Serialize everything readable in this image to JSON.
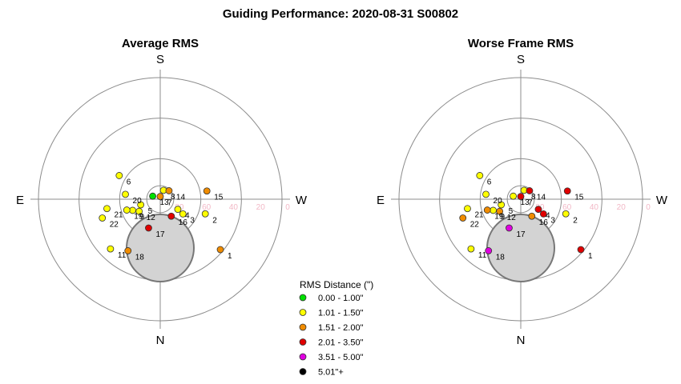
{
  "title": "Guiding Performance: 2020-08-31 S00802",
  "alt_labels": [
    "80",
    "60",
    "40",
    "20",
    "0"
  ],
  "directions": {
    "top": "S",
    "bottom": "N",
    "left": "E",
    "right": "W"
  },
  "legend": {
    "title": "RMS Distance (\")",
    "items": [
      {
        "label": "0.00 - 1.00\"",
        "color": "#00e000"
      },
      {
        "label": "1.01 - 1.50\"",
        "color": "#ffff00"
      },
      {
        "label": "1.51 - 2.00\"",
        "color": "#f08c00"
      },
      {
        "label": "2.01 - 3.50\"",
        "color": "#e00000"
      },
      {
        "label": "3.51 - 5.00\"",
        "color": "#e000e0"
      },
      {
        "label": "5.01\"+",
        "color": "#000000"
      }
    ]
  },
  "chart_data": [
    {
      "type": "scatter",
      "projection": "polar (azimuth / altitude)",
      "title": "Average RMS",
      "r_ticks": [
        80,
        60,
        40,
        20,
        0
      ],
      "points": [
        {
          "label": "1",
          "alt": 32,
          "az": 230,
          "class": 2
        },
        {
          "label": "2",
          "alt": 55,
          "az": 252,
          "class": 1
        },
        {
          "label": "3",
          "alt": 70,
          "az": 237,
          "class": 1
        },
        {
          "label": "4",
          "alt": 75,
          "az": 240,
          "class": 1
        },
        {
          "label": "5",
          "alt": 75,
          "az": 106,
          "class": 1
        },
        {
          "label": "6",
          "alt": 55,
          "az": 60,
          "class": 1
        },
        {
          "label": "7",
          "alt": 88,
          "az": 0,
          "class": 2
        },
        {
          "label": "8",
          "alt": 83,
          "az": 340,
          "class": 1
        },
        {
          "label": "9",
          "alt": 68,
          "az": 112,
          "class": 1
        },
        {
          "label": "12",
          "alt": 72,
          "az": 120,
          "class": 1
        },
        {
          "label": "11",
          "alt": 38,
          "az": 135,
          "class": 1
        },
        {
          "label": "13",
          "alt": 84,
          "az": 68,
          "class": 0
        },
        {
          "label": "14",
          "alt": 81,
          "az": 314,
          "class": 2
        },
        {
          "label": "15",
          "alt": 55,
          "az": 280,
          "class": 2
        },
        {
          "label": "16",
          "alt": 75,
          "az": 213,
          "class": 3
        },
        {
          "label": "17",
          "alt": 67,
          "az": 158,
          "class": 3
        },
        {
          "label": "18",
          "alt": 45,
          "az": 148,
          "class": 2
        },
        {
          "label": "19",
          "alt": 64,
          "az": 108,
          "class": 1
        },
        {
          "label": "20",
          "alt": 64,
          "az": 82,
          "class": 1
        },
        {
          "label": "21",
          "alt": 50,
          "az": 100,
          "class": 1
        },
        {
          "label": "22",
          "alt": 45,
          "az": 108,
          "class": 1
        }
      ]
    },
    {
      "type": "scatter",
      "projection": "polar (azimuth / altitude)",
      "title": "Worse Frame RMS",
      "r_ticks": [
        80,
        60,
        40,
        20,
        0
      ],
      "points": [
        {
          "label": "1",
          "alt": 32,
          "az": 230,
          "class": 3
        },
        {
          "label": "2",
          "alt": 55,
          "az": 252,
          "class": 1
        },
        {
          "label": "3",
          "alt": 70,
          "az": 237,
          "class": 3
        },
        {
          "label": "4",
          "alt": 75,
          "az": 240,
          "class": 3
        },
        {
          "label": "5",
          "alt": 75,
          "az": 106,
          "class": 1
        },
        {
          "label": "6",
          "alt": 55,
          "az": 60,
          "class": 1
        },
        {
          "label": "7",
          "alt": 88,
          "az": 0,
          "class": 3
        },
        {
          "label": "8",
          "alt": 83,
          "az": 340,
          "class": 1
        },
        {
          "label": "9",
          "alt": 68,
          "az": 112,
          "class": 1
        },
        {
          "label": "12",
          "alt": 72,
          "az": 120,
          "class": 2
        },
        {
          "label": "11",
          "alt": 38,
          "az": 135,
          "class": 1
        },
        {
          "label": "13",
          "alt": 84,
          "az": 68,
          "class": 1
        },
        {
          "label": "14",
          "alt": 81,
          "az": 314,
          "class": 3
        },
        {
          "label": "15",
          "alt": 55,
          "az": 280,
          "class": 3
        },
        {
          "label": "16",
          "alt": 75,
          "az": 213,
          "class": 2
        },
        {
          "label": "17",
          "alt": 67,
          "az": 158,
          "class": 4
        },
        {
          "label": "18",
          "alt": 45,
          "az": 148,
          "class": 4
        },
        {
          "label": "19",
          "alt": 64,
          "az": 108,
          "class": 2
        },
        {
          "label": "20",
          "alt": 64,
          "az": 82,
          "class": 1
        },
        {
          "label": "21",
          "alt": 50,
          "az": 100,
          "class": 1
        },
        {
          "label": "22",
          "alt": 45,
          "az": 108,
          "class": 2
        }
      ]
    }
  ]
}
